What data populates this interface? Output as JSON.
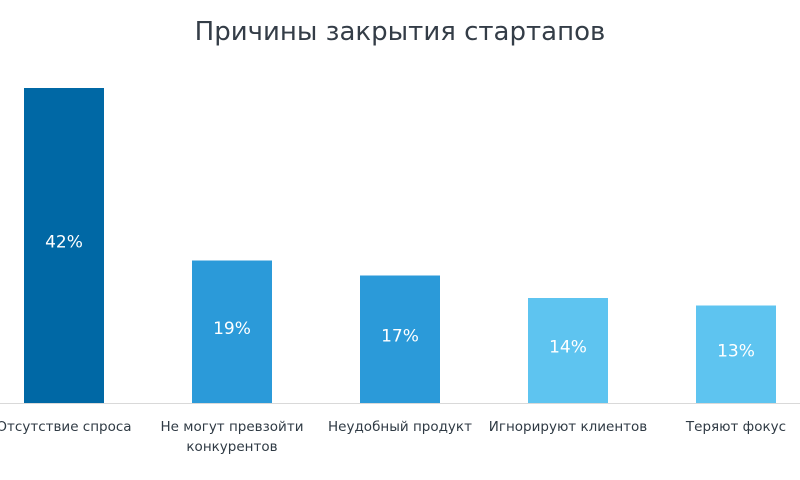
{
  "chart_data": {
    "type": "bar",
    "title": "Причины закрытия стартапов",
    "categories": [
      "Отсутствие спроса",
      "Не могут превзойти конкурентов",
      "Неудобный продукт",
      "Игнорируют клиентов",
      "Теряют фокус"
    ],
    "values": [
      42,
      19,
      17,
      14,
      13
    ],
    "value_labels": [
      "42%",
      "19%",
      "17%",
      "14%",
      "13%"
    ],
    "colors": [
      "#0068a5",
      "#2b9ad9",
      "#2b9ad9",
      "#5ec4f0",
      "#5ec4f0"
    ]
  }
}
